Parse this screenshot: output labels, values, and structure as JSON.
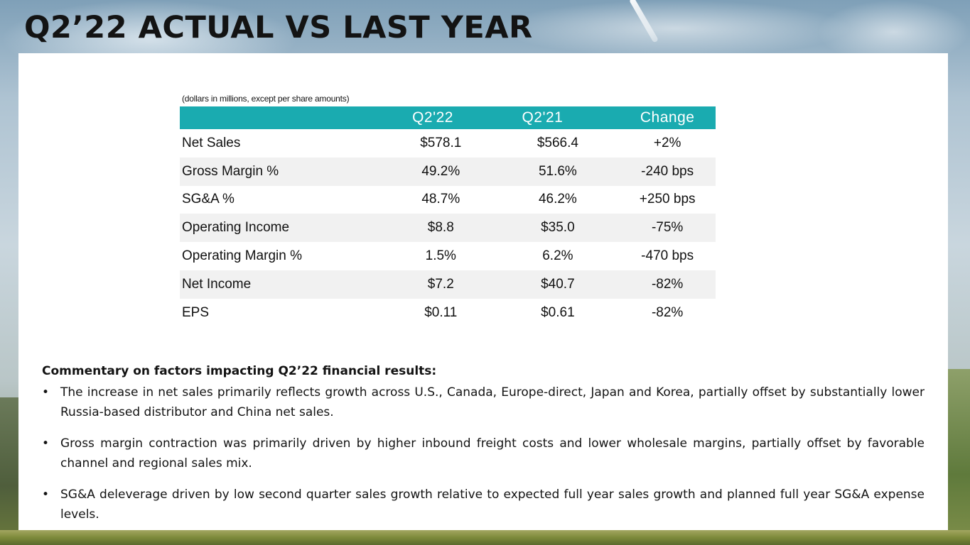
{
  "title": "Q2’22 ACTUAL VS LAST YEAR",
  "table": {
    "note": "(dollars in millions, except per share amounts)",
    "headers": [
      "",
      "Q2'22",
      "Q2'21",
      "Change"
    ],
    "rows": [
      {
        "label": "Net Sales",
        "q22": "$578.1",
        "q21": "$566.4",
        "change": "+2%"
      },
      {
        "label": "Gross Margin %",
        "q22": "49.2%",
        "q21": "51.6%",
        "change": "-240 bps"
      },
      {
        "label": "SG&A %",
        "q22": "48.7%",
        "q21": "46.2%",
        "change": "+250 bps"
      },
      {
        "label": "Operating Income",
        "q22": "$8.8",
        "q21": "$35.0",
        "change": "-75%"
      },
      {
        "label": "Operating Margin %",
        "q22": "1.5%",
        "q21": "6.2%",
        "change": "-470 bps"
      },
      {
        "label": "Net Income",
        "q22": "$7.2",
        "q21": "$40.7",
        "change": "-82%"
      },
      {
        "label": "EPS",
        "q22": "$0.11",
        "q21": "$0.61",
        "change": "-82%"
      }
    ]
  },
  "commentary": {
    "heading": "Commentary on factors impacting Q2’22 financial results:",
    "bullet_char": "•",
    "bullets": [
      "The increase in net sales primarily reflects growth across U.S., Canada, Europe-direct, Japan and Korea, partially offset by substantially lower Russia-based distributor and China net sales.",
      "Gross margin contraction was primarily driven by higher inbound freight costs and lower wholesale margins, partially offset by favorable channel and regional sales mix.",
      "SG&A deleverage driven by low second quarter sales growth relative to expected full year sales growth and planned full year SG&A expense levels."
    ]
  },
  "colors": {
    "table_header": "#1aabb0",
    "row_stripe": "#f1f1f1",
    "text": "#131313"
  }
}
